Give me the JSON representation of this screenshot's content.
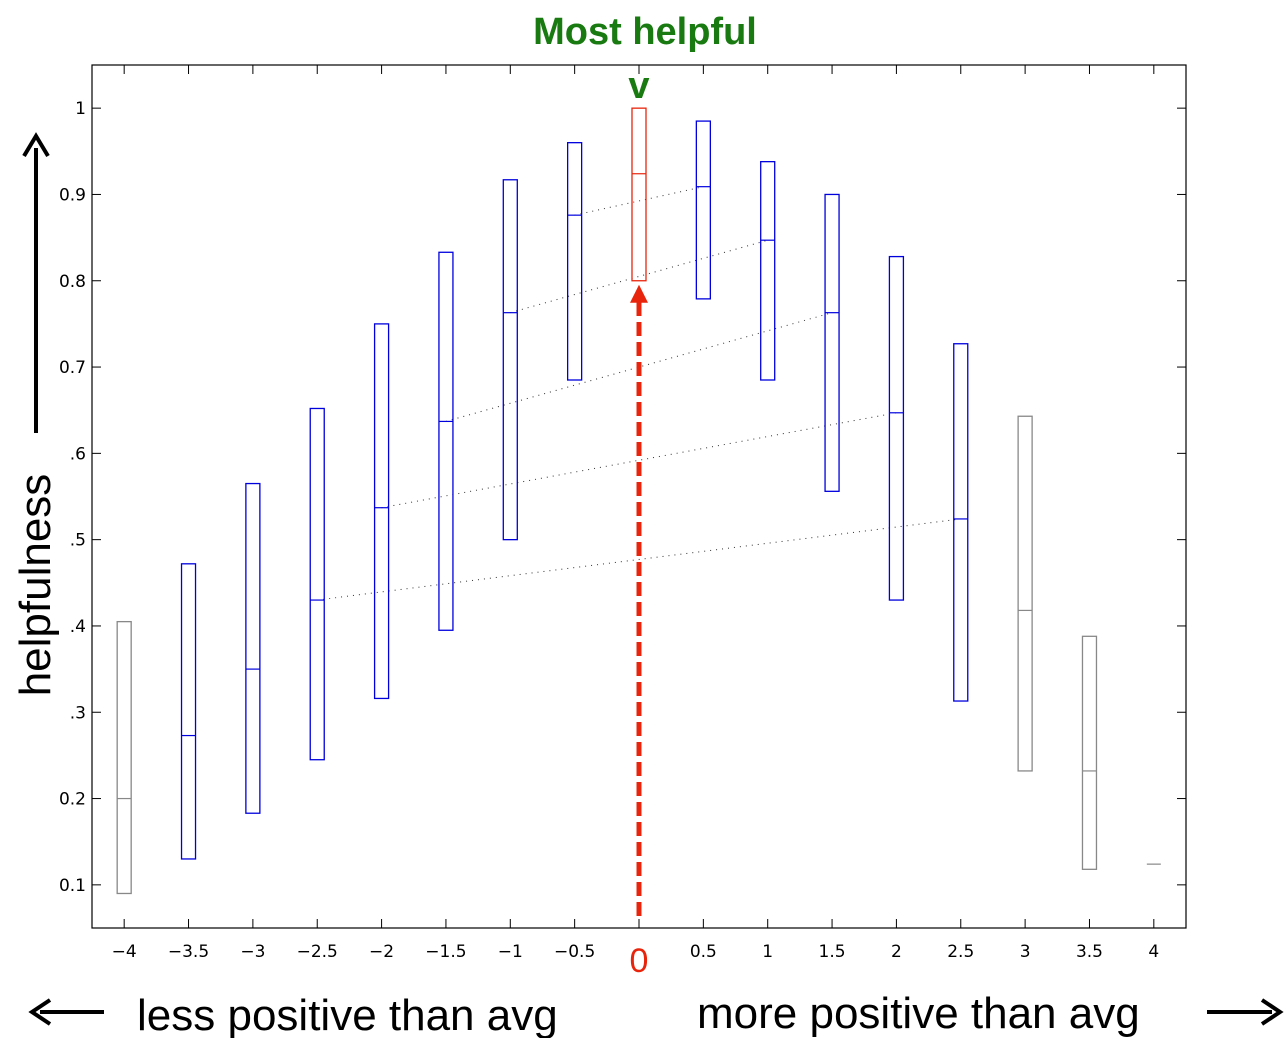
{
  "chart_data": {
    "type": "box",
    "title": "Most helpful",
    "marker_label": "v",
    "ylabel": "helpfulness",
    "xlabel_left": "less positive than avg",
    "xlabel_right": "more positive than avg",
    "zero_label": "0",
    "xlim": [
      -4.25,
      4.25
    ],
    "ylim": [
      0.05,
      1.05
    ],
    "xticks": [
      -4,
      -3.5,
      -3,
      -2.5,
      -2,
      -1.5,
      -1,
      -0.5,
      0,
      0.5,
      1,
      1.5,
      2,
      2.5,
      3,
      3.5,
      4
    ],
    "xtick_labels": [
      "−4",
      "−3.5",
      "−3",
      "−2.5",
      "−2",
      "−1.5",
      "−1",
      "−0.5",
      "0",
      "0.5",
      "1",
      "1.5",
      "2",
      "2.5",
      "3",
      "3.5",
      "4"
    ],
    "yticks": [
      0.1,
      0.2,
      0.3,
      0.4,
      0.5,
      0.6,
      0.7,
      0.8,
      0.9,
      1
    ],
    "ytick_labels": [
      "0.1",
      "0.2",
      ".3",
      ".4",
      ".5",
      ".6",
      "0.7",
      "0.8",
      "0.9",
      "1"
    ],
    "boxes": [
      {
        "x": -4,
        "low": 0.09,
        "median": 0.2,
        "high": 0.405,
        "color": "#888888"
      },
      {
        "x": -3.5,
        "low": 0.13,
        "median": 0.273,
        "high": 0.472,
        "color": "#0000dd"
      },
      {
        "x": -3,
        "low": 0.183,
        "median": 0.35,
        "high": 0.565,
        "color": "#0000dd"
      },
      {
        "x": -2.5,
        "low": 0.245,
        "median": 0.43,
        "high": 0.652,
        "color": "#0000dd"
      },
      {
        "x": -2,
        "low": 0.316,
        "median": 0.537,
        "high": 0.75,
        "color": "#0000dd"
      },
      {
        "x": -1.5,
        "low": 0.395,
        "median": 0.637,
        "high": 0.833,
        "color": "#0000dd"
      },
      {
        "x": -1,
        "low": 0.5,
        "median": 0.763,
        "high": 0.917,
        "color": "#0000dd"
      },
      {
        "x": -0.5,
        "low": 0.685,
        "median": 0.876,
        "high": 0.96,
        "color": "#0000dd"
      },
      {
        "x": 0,
        "low": 0.8,
        "median": 0.924,
        "high": 1.0,
        "color": "#e8250c"
      },
      {
        "x": 0.5,
        "low": 0.779,
        "median": 0.909,
        "high": 0.985,
        "color": "#0000dd"
      },
      {
        "x": 1,
        "low": 0.685,
        "median": 0.847,
        "high": 0.938,
        "color": "#0000dd"
      },
      {
        "x": 1.5,
        "low": 0.556,
        "median": 0.763,
        "high": 0.9,
        "color": "#0000dd"
      },
      {
        "x": 2,
        "low": 0.43,
        "median": 0.647,
        "high": 0.828,
        "color": "#0000dd"
      },
      {
        "x": 2.5,
        "low": 0.313,
        "median": 0.524,
        "high": 0.727,
        "color": "#0000dd"
      },
      {
        "x": 3,
        "low": 0.232,
        "median": 0.418,
        "high": 0.643,
        "color": "#888888"
      },
      {
        "x": 3.5,
        "low": 0.118,
        "median": 0.232,
        "high": 0.388,
        "color": "#888888"
      },
      {
        "x": 4,
        "low": 0.124,
        "median": 0.124,
        "high": 0.124,
        "color": "#888888"
      }
    ],
    "dotted_links": [
      {
        "from": -2.5,
        "to": 2.5
      },
      {
        "from": -2,
        "to": 2
      },
      {
        "from": -1.5,
        "to": 1.5
      },
      {
        "from": -1,
        "to": 1
      },
      {
        "from": -0.5,
        "to": 0.5
      }
    ],
    "colors": {
      "box_in_range": "#0000dd",
      "box_out_range": "#888888",
      "highlight": "#e8250c",
      "title": "#1a7a12"
    }
  }
}
